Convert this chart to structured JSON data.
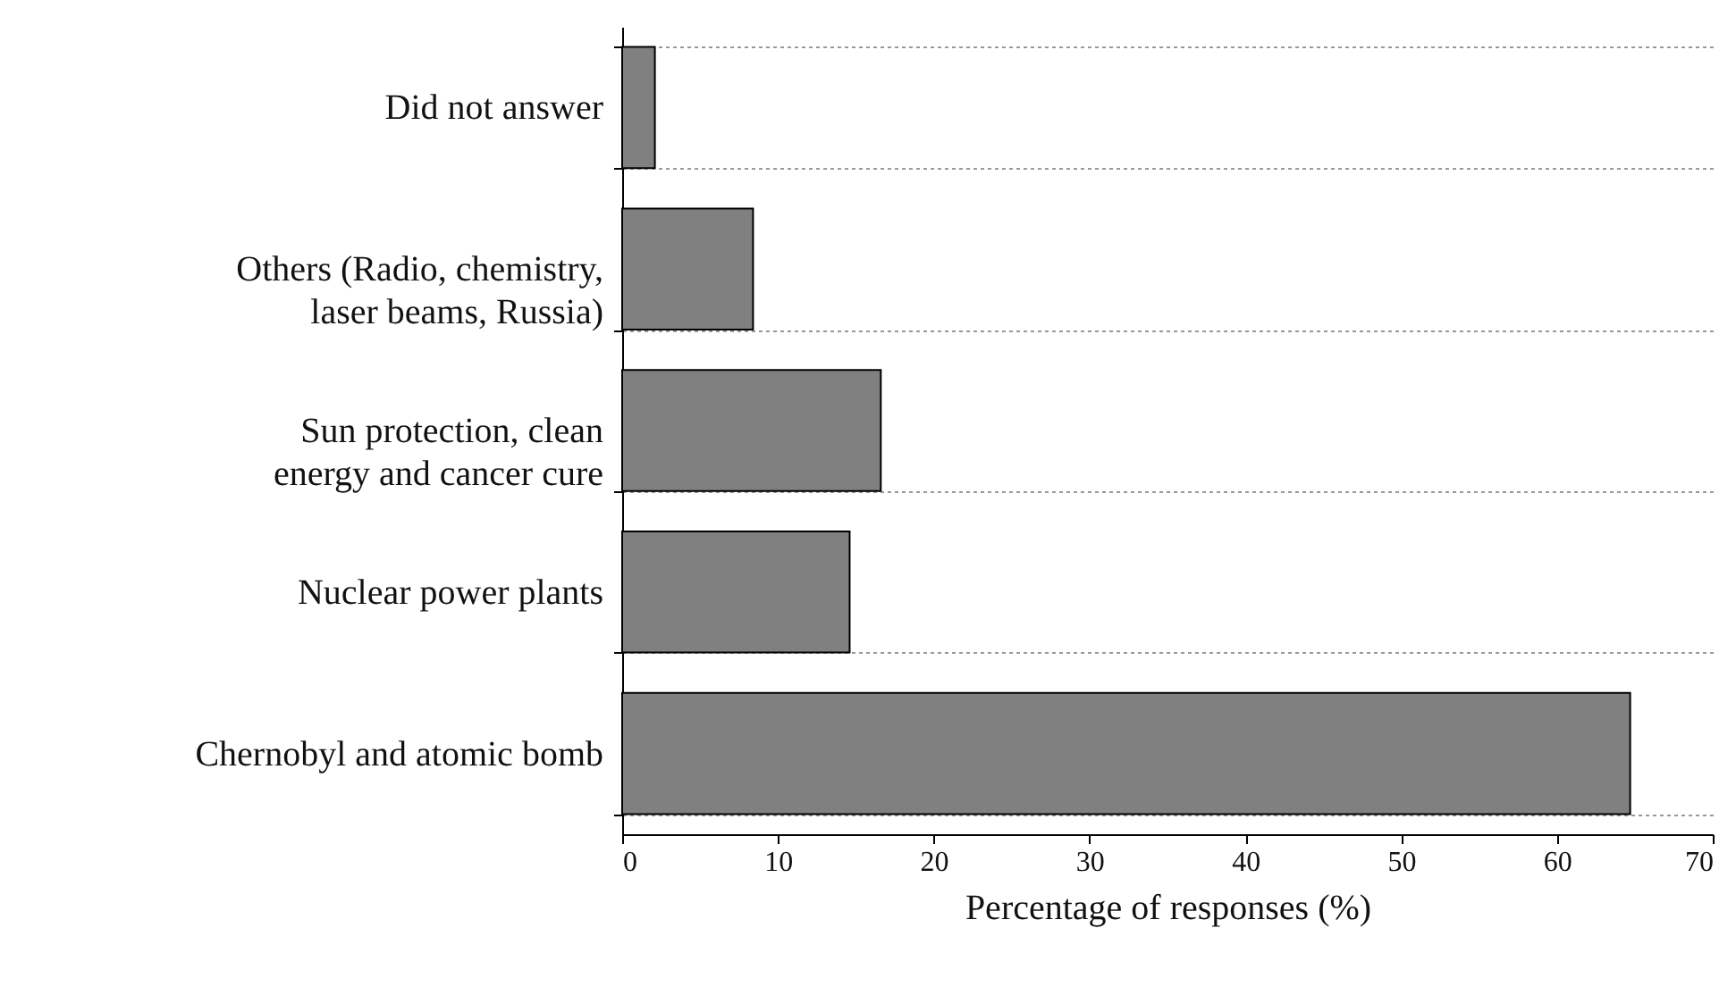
{
  "chart_data": {
    "type": "bar",
    "orientation": "horizontal",
    "xlabel": "Percentage of responses (%)",
    "categories": [
      "Did not answer",
      "Others (Radio, chemistry, laser beams, Russia)",
      "Sun protection, clean energy and cancer cure",
      "Nuclear power plants",
      "Chernobyl and atomic bomb"
    ],
    "values": [
      2.1,
      8.4,
      16.6,
      14.6,
      64.7
    ],
    "color": "#808080",
    "xlim": [
      0,
      70
    ],
    "xticks": [
      0,
      10,
      20,
      30,
      40,
      50,
      60,
      70
    ],
    "grid": "y"
  }
}
